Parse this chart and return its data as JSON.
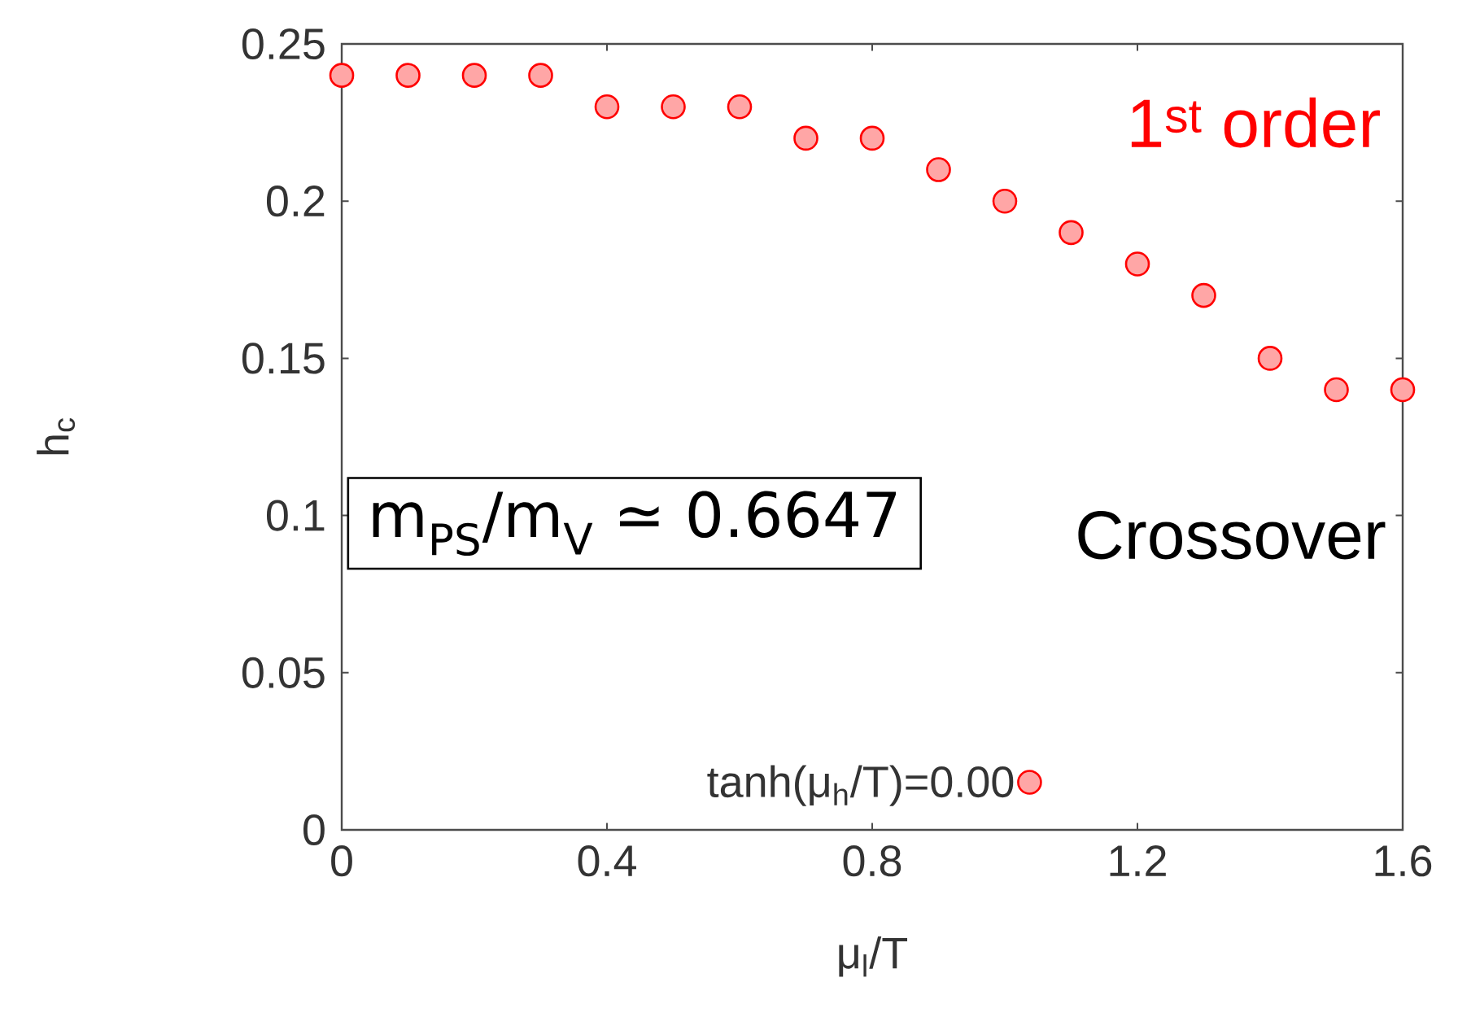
{
  "chart_data": {
    "type": "scatter",
    "xlabel": "μ$_{l}$/T",
    "ylabel": "h$_{c}$",
    "x": [
      0,
      0.1,
      0.2,
      0.3,
      0.4,
      0.5,
      0.6,
      0.7,
      0.8,
      0.9,
      1.0,
      1.1,
      1.2,
      1.3,
      1.4,
      1.5,
      1.6
    ],
    "series": [
      {
        "name": "tanh(μ$_{h}$/T)=0.00",
        "color": "#ff0000",
        "values": [
          0.24,
          0.24,
          0.24,
          0.24,
          0.23,
          0.23,
          0.23,
          0.22,
          0.22,
          0.21,
          0.2,
          0.19,
          0.18,
          0.17,
          0.15,
          0.14,
          0.14
        ]
      }
    ],
    "xlim": [
      0,
      1.6
    ],
    "xticks": [
      0,
      0.4,
      0.8,
      1.2,
      1.6
    ],
    "ylim": [
      0,
      0.25
    ],
    "yticks": [
      0,
      0.05,
      0.1,
      0.15,
      0.2,
      0.25
    ],
    "marker": "circle",
    "legend": "bottom",
    "annotations": [
      "1$^{st}$ order",
      "Crossover",
      "m$_{PS}$/m$_{V}$ ≃ 0.6647"
    ]
  }
}
